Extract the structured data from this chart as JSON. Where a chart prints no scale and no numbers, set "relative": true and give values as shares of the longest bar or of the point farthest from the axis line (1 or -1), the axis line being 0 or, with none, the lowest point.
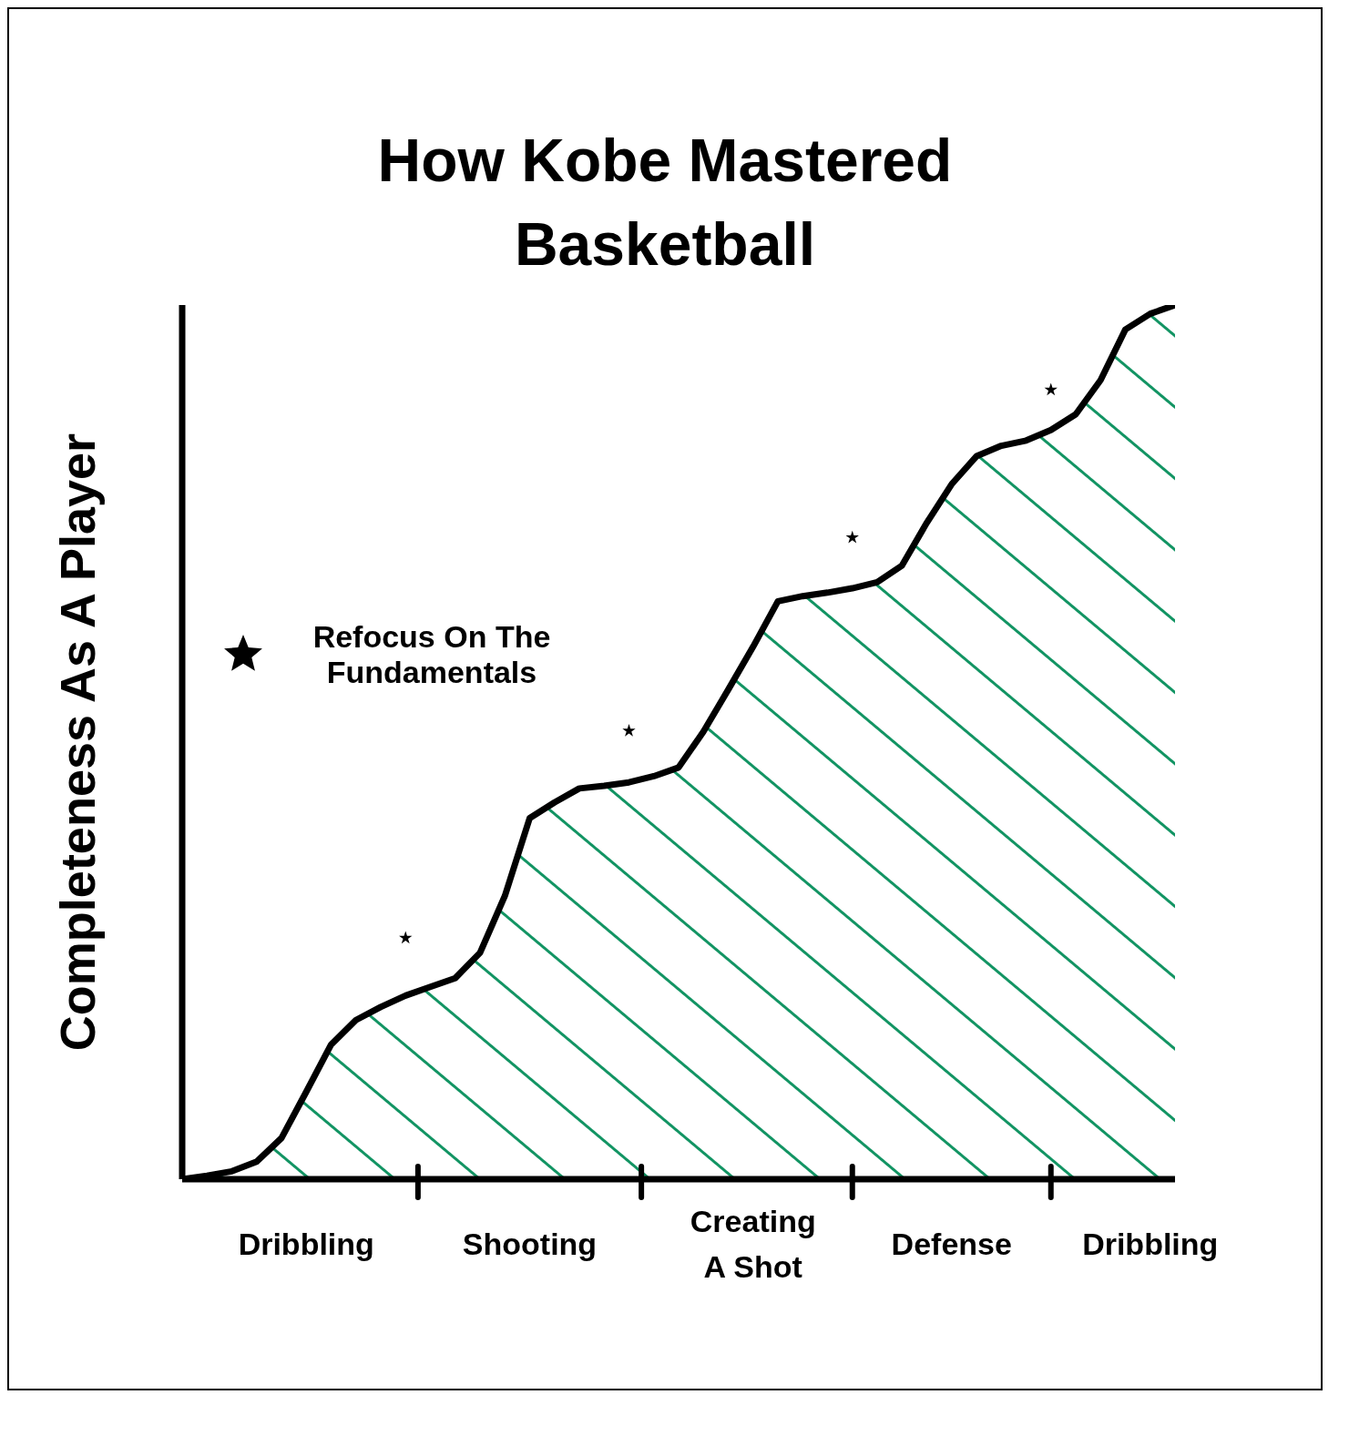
{
  "chart_data": {
    "type": "area",
    "title": "How Kobe Mastered Basketball",
    "ylabel": "Completeness As A Player",
    "relative": true,
    "legend": "top left",
    "categories": [
      null,
      null,
      null,
      null,
      null,
      "Dribbling",
      null,
      null,
      null,
      null,
      null,
      null,
      null,
      null,
      "Shooting",
      null,
      null,
      null,
      null,
      null,
      null,
      null,
      null,
      "Creating A Shot",
      null,
      null,
      null,
      null,
      null,
      null,
      null,
      "Defense",
      null,
      null,
      null,
      null,
      null,
      null,
      null,
      "Dribbling",
      null
    ],
    "series": [
      {
        "color": "#129463",
        "values": [
          0,
          0.004,
          0.009,
          0.02,
          0.047,
          0.1,
          0.154,
          0.182,
          0.197,
          0.21,
          0.22,
          0.23,
          0.259,
          0.324,
          0.413,
          0.431,
          0.447,
          0.45,
          0.454,
          0.461,
          0.471,
          0.512,
          0.56,
          0.609,
          0.661,
          0.667,
          0.671,
          0.676,
          0.683,
          0.702,
          0.751,
          0.795,
          0.827,
          0.839,
          0.845,
          0.857,
          0.875,
          0.914,
          0.972,
          0.99,
          1
        ]
      },
      {
        "type": "scatter",
        "name": "Refocus On The Fundamentals",
        "color": "#000000",
        "marker": "star",
        "values": [
          null,
          null,
          null,
          null,
          null,
          null,
          null,
          null,
          null,
          0.276,
          null,
          null,
          null,
          null,
          null,
          null,
          null,
          null,
          0.513,
          null,
          null,
          null,
          null,
          null,
          null,
          null,
          null,
          0.734,
          null,
          null,
          null,
          null,
          null,
          null,
          null,
          0.903,
          null,
          null,
          null,
          null,
          null
        ]
      }
    ]
  }
}
